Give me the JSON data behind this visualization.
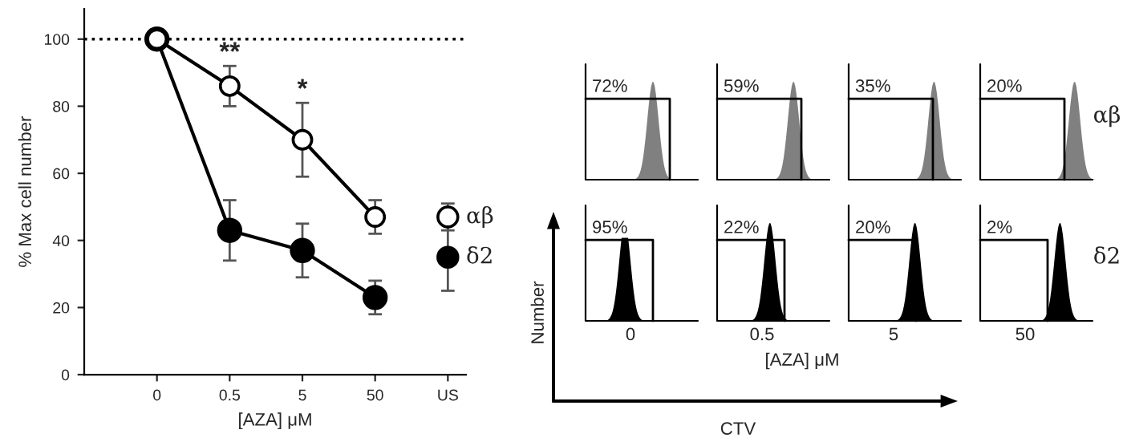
{
  "chart_data": [
    {
      "type": "line",
      "ylabel": "% Max cell number",
      "xlabel": "[AZA] μM",
      "categories": [
        "0",
        "0.5",
        "5",
        "50",
        "US"
      ],
      "series": [
        {
          "type": "line",
          "color": "#ffffff",
          "values": [
            100,
            86,
            70,
            47,
            null
          ],
          "errors": [
            null,
            6,
            11,
            5,
            null
          ]
        },
        {
          "type": "line",
          "color": "#000000",
          "values": [
            100,
            43,
            37,
            23,
            null
          ],
          "errors": [
            null,
            9,
            8,
            5,
            null
          ]
        },
        {
          "type": "scatter",
          "name": "αβ",
          "color": "#ffffff",
          "values": [
            null,
            null,
            null,
            null,
            47
          ],
          "errors": [
            null,
            null,
            null,
            null,
            4
          ]
        },
        {
          "type": "scatter",
          "name": "δ2",
          "color": "#000000",
          "values": [
            null,
            null,
            null,
            null,
            35
          ],
          "errors": [
            null,
            null,
            null,
            null,
            [
              25,
              46
            ]
          ]
        }
      ],
      "ylim": [
        0,
        109
      ],
      "yticks": [
        0,
        20,
        40,
        60,
        80,
        100
      ],
      "ref_lines": [
        {
          "axis": "y",
          "value": 100,
          "line_style": "dotted"
        }
      ],
      "annotations": [
        {
          "text": "**",
          "x": "0.5",
          "y": 92
        },
        {
          "text": "*",
          "x": "5",
          "y": 81
        }
      ],
      "marker": "circle",
      "grid": false,
      "legend": false
    },
    {
      "type": "other",
      "xlabel": "CTV",
      "ylabel": "Number",
      "categories": [
        "0",
        "0.5",
        "5",
        "50"
      ],
      "y_categories": [
        "αβ",
        "δ2"
      ],
      "annotations": [
        "72%",
        "59%",
        "35%",
        "20%",
        "95%",
        "22%",
        "20%",
        "2%",
        "[AZA] μM"
      ]
    }
  ]
}
